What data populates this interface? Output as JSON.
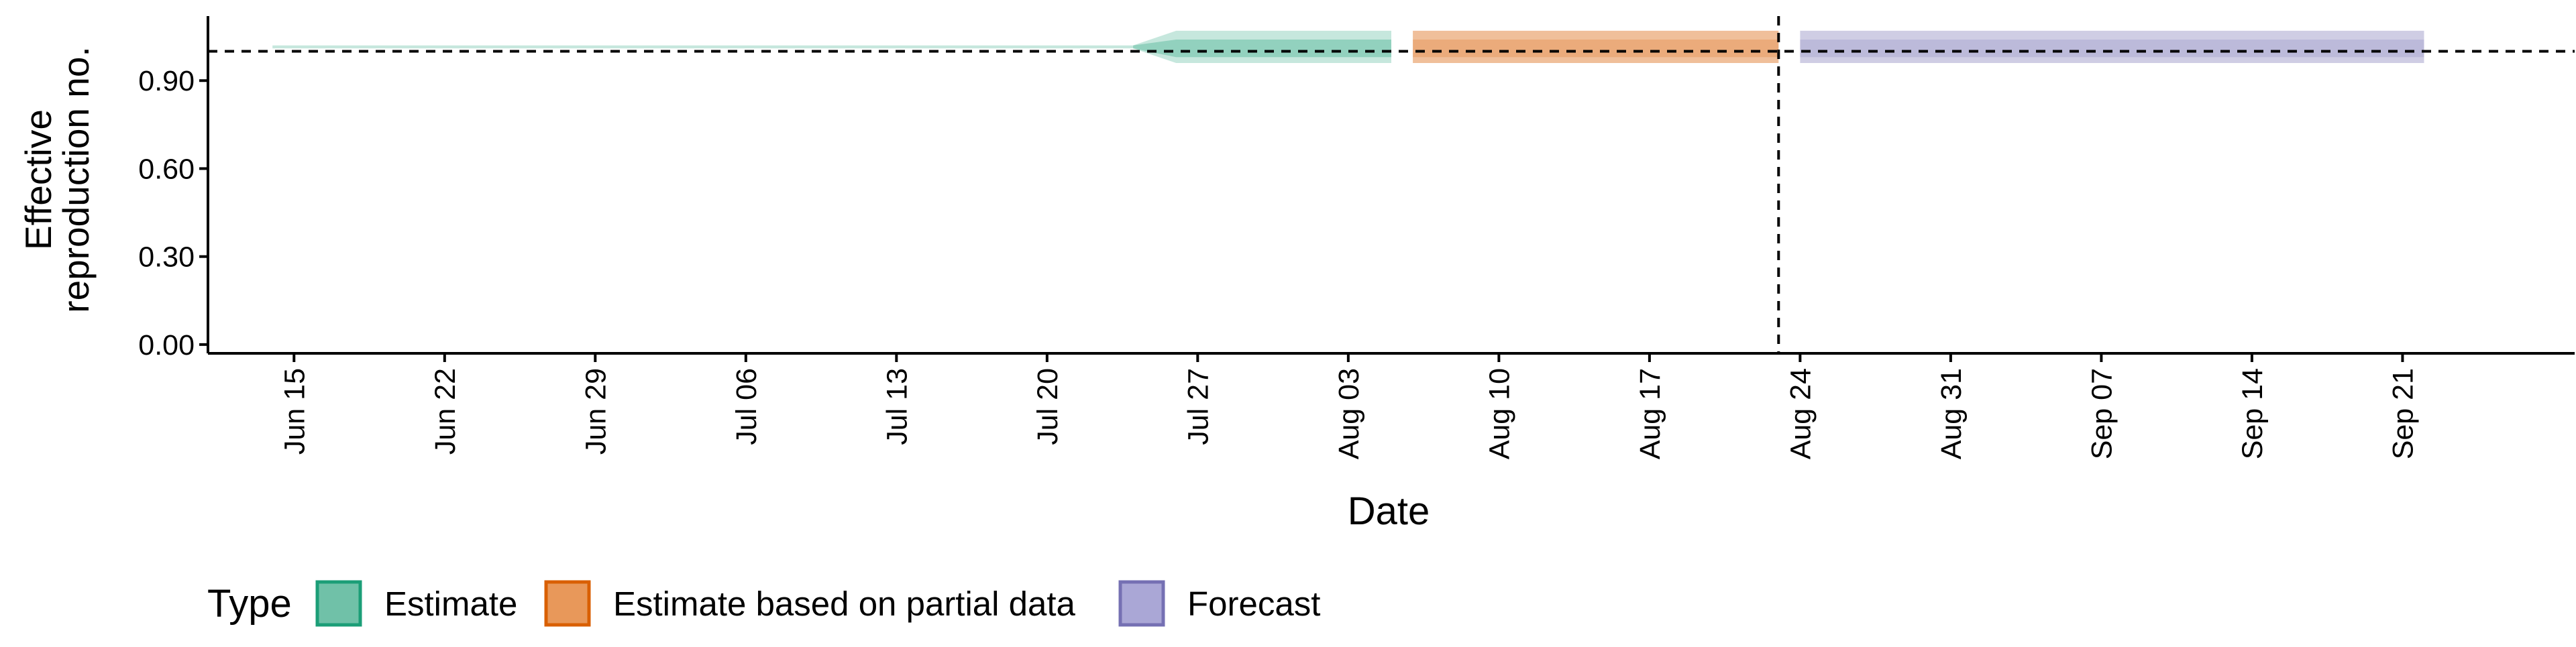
{
  "chart_data": {
    "type": "area",
    "title": "",
    "xlabel": "Date",
    "ylabel_lines": [
      "Effective",
      "reproduction no."
    ],
    "ylim": [
      -0.03,
      1.12
    ],
    "y_ticks": [
      {
        "value": 0.0,
        "label": "0.00"
      },
      {
        "value": 0.3,
        "label": "0.30"
      },
      {
        "value": 0.6,
        "label": "0.60"
      },
      {
        "value": 0.9,
        "label": "0.90"
      }
    ],
    "x_range": [
      "2020-06-11",
      "2020-09-29"
    ],
    "x_ticks": [
      {
        "date": "2020-06-15",
        "label": "Jun 15"
      },
      {
        "date": "2020-06-22",
        "label": "Jun 22"
      },
      {
        "date": "2020-06-29",
        "label": "Jun 29"
      },
      {
        "date": "2020-07-06",
        "label": "Jul 06"
      },
      {
        "date": "2020-07-13",
        "label": "Jul 13"
      },
      {
        "date": "2020-07-20",
        "label": "Jul 20"
      },
      {
        "date": "2020-07-27",
        "label": "Jul 27"
      },
      {
        "date": "2020-08-03",
        "label": "Aug 03"
      },
      {
        "date": "2020-08-10",
        "label": "Aug 10"
      },
      {
        "date": "2020-08-17",
        "label": "Aug 17"
      },
      {
        "date": "2020-08-24",
        "label": "Aug 24"
      },
      {
        "date": "2020-08-31",
        "label": "Aug 31"
      },
      {
        "date": "2020-09-07",
        "label": "Sep 07"
      },
      {
        "date": "2020-09-14",
        "label": "Sep 14"
      },
      {
        "date": "2020-09-21",
        "label": "Sep 21"
      }
    ],
    "reference_line": {
      "value": 1.0,
      "style": "dashed"
    },
    "vertical_line": {
      "date": "2020-08-23",
      "style": "dashed"
    },
    "series": [
      {
        "name": "Estimate",
        "color": "#1b9e77",
        "bands": [
          {
            "opacity": 0.25,
            "points": [
              {
                "date": "2020-06-14",
                "lower": 1.01,
                "upper": 1.02
              },
              {
                "date": "2020-07-24",
                "lower": 1.01,
                "upper": 1.02
              },
              {
                "date": "2020-07-26",
                "lower": 0.96,
                "upper": 1.07
              },
              {
                "date": "2020-08-05",
                "lower": 0.96,
                "upper": 1.07
              }
            ]
          },
          {
            "opacity": 0.3,
            "points": [
              {
                "date": "2020-07-24",
                "lower": 1.01,
                "upper": 1.02
              },
              {
                "date": "2020-07-26",
                "lower": 0.98,
                "upper": 1.04
              },
              {
                "date": "2020-08-05",
                "lower": 0.98,
                "upper": 1.04
              }
            ]
          }
        ]
      },
      {
        "name": "Estimate based on partial data",
        "color": "#d95f02",
        "bands": [
          {
            "opacity": 0.4,
            "points": [
              {
                "date": "2020-08-06",
                "lower": 0.96,
                "upper": 1.07
              },
              {
                "date": "2020-08-23",
                "lower": 0.96,
                "upper": 1.07
              }
            ]
          },
          {
            "opacity": 0.2,
            "points": [
              {
                "date": "2020-08-06",
                "lower": 0.98,
                "upper": 1.04
              },
              {
                "date": "2020-08-23",
                "lower": 0.98,
                "upper": 1.04
              }
            ]
          }
        ]
      },
      {
        "name": "Forecast",
        "color": "#7570b3",
        "bands": [
          {
            "opacity": 0.35,
            "points": [
              {
                "date": "2020-08-24",
                "lower": 0.96,
                "upper": 1.07
              },
              {
                "date": "2020-09-22",
                "lower": 0.96,
                "upper": 1.07
              }
            ]
          },
          {
            "opacity": 0.2,
            "points": [
              {
                "date": "2020-08-24",
                "lower": 0.98,
                "upper": 1.04
              },
              {
                "date": "2020-09-22",
                "lower": 0.98,
                "upper": 1.04
              }
            ]
          }
        ]
      }
    ],
    "legend": {
      "title": "Type",
      "position": "bottom-left",
      "entries": [
        {
          "label": "Estimate",
          "fill": "#70c1a8",
          "stroke": "#1b9e77"
        },
        {
          "label": "Estimate based on partial data",
          "fill": "#e8985a",
          "stroke": "#d95f02"
        },
        {
          "label": "Forecast",
          "fill": "#aaa7d6",
          "stroke": "#7570b3"
        }
      ]
    },
    "grid": false
  }
}
